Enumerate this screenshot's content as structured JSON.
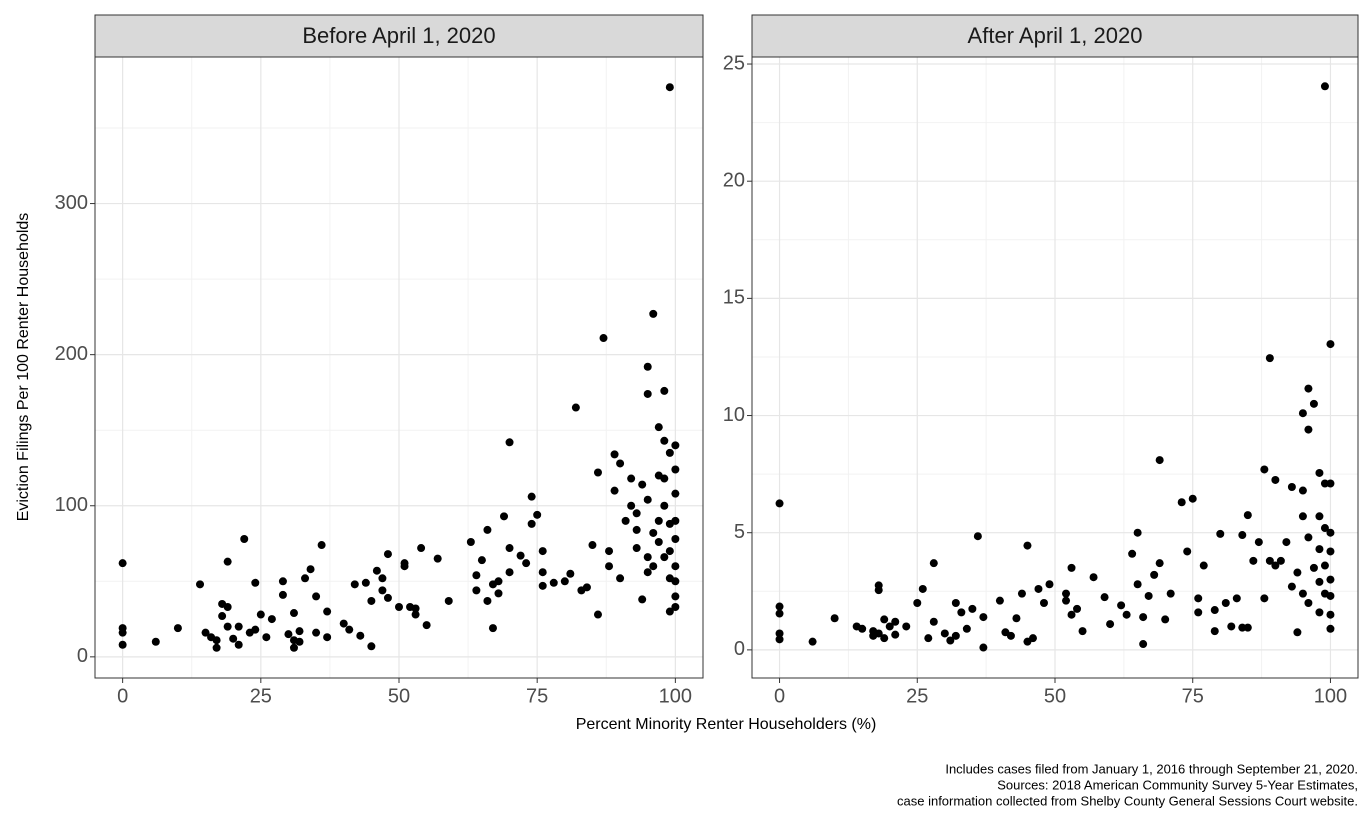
{
  "chart_data": [
    {
      "type": "scatter",
      "title": "Before April 1, 2020",
      "color": "#000000",
      "grid": true,
      "xlim": [
        -5,
        105
      ],
      "ylim": [
        -14,
        397
      ],
      "xticks": [
        0,
        25,
        50,
        75,
        100
      ],
      "yticks": [
        0,
        100,
        200,
        300
      ],
      "x_minor_grid": [
        12.5,
        37.5,
        62.5,
        87.5
      ],
      "y_minor_grid": [
        50,
        150,
        250,
        350
      ],
      "x": [
        0,
        0,
        0,
        0,
        6,
        10,
        14,
        15,
        16,
        17,
        17,
        18,
        18,
        19,
        19,
        19,
        20,
        21,
        21,
        22,
        23,
        24,
        24,
        25,
        26,
        27,
        29,
        29,
        30,
        31,
        31,
        31,
        32,
        32,
        33,
        34,
        35,
        35,
        36,
        37,
        37,
        40,
        41,
        42,
        43,
        44,
        45,
        45,
        46,
        47,
        47,
        48,
        48,
        50,
        51,
        51,
        52,
        53,
        53,
        54,
        55,
        57,
        59,
        63,
        64,
        64,
        65,
        66,
        66,
        67,
        67,
        68,
        68,
        69,
        70,
        70,
        70,
        72,
        73,
        74,
        74,
        75,
        76,
        76,
        76,
        78,
        80,
        81,
        82,
        83,
        84,
        85,
        86,
        86,
        87,
        88,
        88,
        89,
        89,
        90,
        90,
        91,
        92,
        92,
        93,
        93,
        93,
        94,
        94,
        95,
        95,
        95,
        95,
        95,
        96,
        96,
        96,
        97,
        97,
        97,
        97,
        98,
        98,
        98,
        98,
        98,
        99,
        99,
        99,
        99,
        99,
        99,
        100,
        100,
        100,
        100,
        100,
        100,
        100,
        100,
        100
      ],
      "values": [
        62,
        19,
        16,
        8,
        10,
        19,
        48,
        16,
        13,
        6,
        11,
        35,
        27,
        33,
        20,
        63,
        12,
        20,
        8,
        78,
        16,
        18,
        49,
        28,
        13,
        25,
        50,
        41,
        15,
        6,
        11,
        29,
        17,
        10,
        52,
        58,
        16,
        40,
        74,
        13,
        30,
        22,
        18,
        48,
        14,
        49,
        37,
        7,
        57,
        52,
        44,
        68,
        39,
        33,
        60,
        62,
        33,
        28,
        32,
        72,
        21,
        65,
        37,
        76,
        54,
        44,
        64,
        84,
        37,
        48,
        19,
        42,
        50,
        93,
        142,
        56,
        72,
        67,
        62,
        106,
        88,
        94,
        70,
        56,
        47,
        49,
        50,
        55,
        165,
        44,
        46,
        74,
        122,
        28,
        211,
        60,
        70,
        134,
        110,
        128,
        52,
        90,
        118,
        100,
        84,
        72,
        95,
        114,
        38,
        104,
        56,
        66,
        192,
        174,
        227,
        82,
        60,
        152,
        120,
        90,
        76,
        176,
        143,
        118,
        100,
        66,
        377,
        30,
        52,
        70,
        88,
        135,
        140,
        124,
        108,
        90,
        78,
        60,
        50,
        40,
        33
      ]
    },
    {
      "type": "scatter",
      "title": "After April 1, 2020",
      "color": "#000000",
      "grid": true,
      "xlim": [
        -5,
        105
      ],
      "ylim": [
        -1.2,
        25.3
      ],
      "xticks": [
        0,
        25,
        50,
        75,
        100
      ],
      "yticks": [
        0,
        5,
        10,
        15,
        20,
        25
      ],
      "x_minor_grid": [
        12.5,
        37.5,
        62.5,
        87.5
      ],
      "y_minor_grid": [
        2.5,
        7.5,
        12.5,
        17.5,
        22.5
      ],
      "x": [
        0,
        0,
        0,
        0,
        0,
        6,
        10,
        14,
        15,
        17,
        17,
        18,
        18,
        18,
        19,
        19,
        20,
        21,
        21,
        23,
        25,
        26,
        27,
        28,
        28,
        30,
        31,
        32,
        32,
        33,
        34,
        35,
        36,
        37,
        37,
        40,
        41,
        42,
        43,
        44,
        45,
        45,
        46,
        47,
        48,
        49,
        52,
        52,
        53,
        53,
        54,
        55,
        57,
        59,
        60,
        62,
        63,
        64,
        65,
        65,
        66,
        66,
        67,
        68,
        69,
        69,
        70,
        71,
        73,
        74,
        75,
        76,
        76,
        77,
        79,
        79,
        80,
        81,
        82,
        83,
        84,
        84,
        85,
        85,
        86,
        87,
        88,
        88,
        89,
        89,
        90,
        90,
        91,
        92,
        93,
        93,
        94,
        94,
        95,
        95,
        95,
        95,
        96,
        96,
        96,
        96,
        97,
        97,
        98,
        98,
        98,
        98,
        98,
        99,
        99,
        99,
        99,
        99,
        100,
        100,
        100,
        100,
        100,
        100,
        100,
        100
      ],
      "values": [
        6.25,
        1.85,
        1.55,
        0.7,
        0.45,
        0.35,
        1.35,
        1.0,
        0.9,
        0.8,
        0.6,
        0.7,
        2.75,
        2.55,
        0.5,
        1.3,
        1.0,
        1.2,
        0.65,
        1.0,
        2.0,
        2.6,
        0.5,
        1.2,
        3.7,
        0.7,
        0.4,
        0.6,
        2.0,
        1.6,
        0.9,
        1.75,
        4.85,
        0.1,
        1.4,
        2.1,
        0.75,
        0.6,
        1.35,
        2.4,
        4.45,
        0.35,
        0.5,
        2.6,
        2.0,
        2.8,
        2.4,
        2.1,
        3.5,
        1.5,
        1.75,
        0.8,
        3.1,
        2.25,
        1.1,
        1.9,
        1.5,
        4.1,
        5.0,
        2.8,
        1.4,
        0.25,
        2.3,
        3.2,
        3.7,
        8.1,
        1.3,
        2.4,
        6.3,
        4.2,
        6.45,
        2.2,
        1.6,
        3.6,
        1.7,
        0.8,
        4.95,
        2.0,
        1.0,
        2.2,
        4.9,
        0.95,
        5.75,
        0.95,
        3.8,
        4.6,
        7.7,
        2.2,
        12.45,
        3.8,
        7.25,
        3.6,
        3.8,
        4.6,
        6.95,
        2.7,
        3.3,
        0.75,
        6.8,
        10.1,
        5.7,
        2.4,
        11.15,
        9.4,
        4.8,
        2.0,
        10.5,
        3.5,
        7.55,
        5.7,
        4.3,
        2.9,
        1.6,
        24.05,
        7.1,
        5.2,
        3.6,
        2.4,
        13.05,
        7.1,
        5.0,
        4.2,
        3.0,
        2.3,
        1.5,
        0.9
      ]
    }
  ],
  "x_label": "Percent Minority Renter Householders (%)",
  "y_label": "Eviction Filings Per 100 Renter Households",
  "caption": [
    "Includes cases filed from January 1, 2016 through September 21, 2020.",
    "Sources: 2018 American Community Survey 5-Year Estimates,",
    "case information collected from Shelby County General Sessions Court website."
  ]
}
